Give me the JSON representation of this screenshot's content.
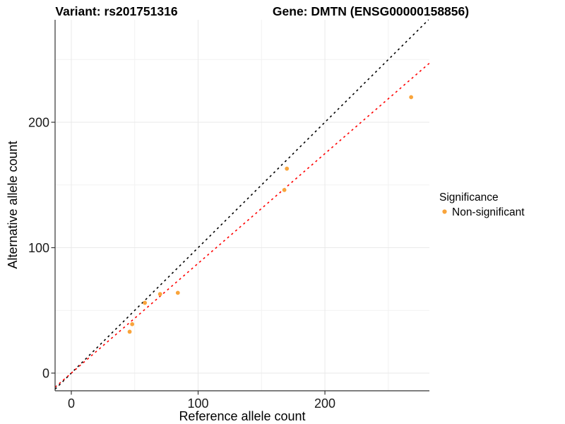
{
  "chart_data": {
    "type": "scatter",
    "title_left": "Variant: rs201751316",
    "title_right": "Gene: DMTN (ENSG00000158856)",
    "xlabel": "Reference allele count",
    "ylabel": "Alternative allele count",
    "xlim": [
      -12.8,
      282.4
    ],
    "ylim": [
      -14.1,
      281.7
    ],
    "x_major_ticks": [
      0,
      100,
      200
    ],
    "y_major_ticks": [
      0,
      100,
      200
    ],
    "x_minor_gridlines": [
      50,
      150,
      250
    ],
    "y_minor_gridlines": [
      50,
      150,
      250
    ],
    "grid": true,
    "series": [
      {
        "name": "Non-significant",
        "color": "#F9A43B",
        "points": [
          {
            "x": 46,
            "y": 33
          },
          {
            "x": 48,
            "y": 39
          },
          {
            "x": 58,
            "y": 56
          },
          {
            "x": 70,
            "y": 63
          },
          {
            "x": 84,
            "y": 64
          },
          {
            "x": 168,
            "y": 146
          },
          {
            "x": 170,
            "y": 163
          },
          {
            "x": 268,
            "y": 220
          }
        ]
      }
    ],
    "lines": [
      {
        "name": "identity-line",
        "slope": 1,
        "intercept": 0,
        "color": "#000000",
        "style": "dashed"
      },
      {
        "name": "fit-line",
        "slope": 0.875,
        "intercept": 0,
        "color": "#FF0000",
        "style": "dashed"
      }
    ],
    "legend": {
      "title": "Significance",
      "position": "right",
      "entries": [
        {
          "label": "Non-significant",
          "color": "#F9A43B"
        }
      ]
    }
  },
  "colors": {
    "background": "#FFFFFF",
    "grid_major": "#E9E9E9",
    "grid_minor": "#F2F2F2",
    "axis_line": "#333333",
    "point": "#F9A43B",
    "fit_line": "#FF0000",
    "identity_line": "#000000"
  }
}
